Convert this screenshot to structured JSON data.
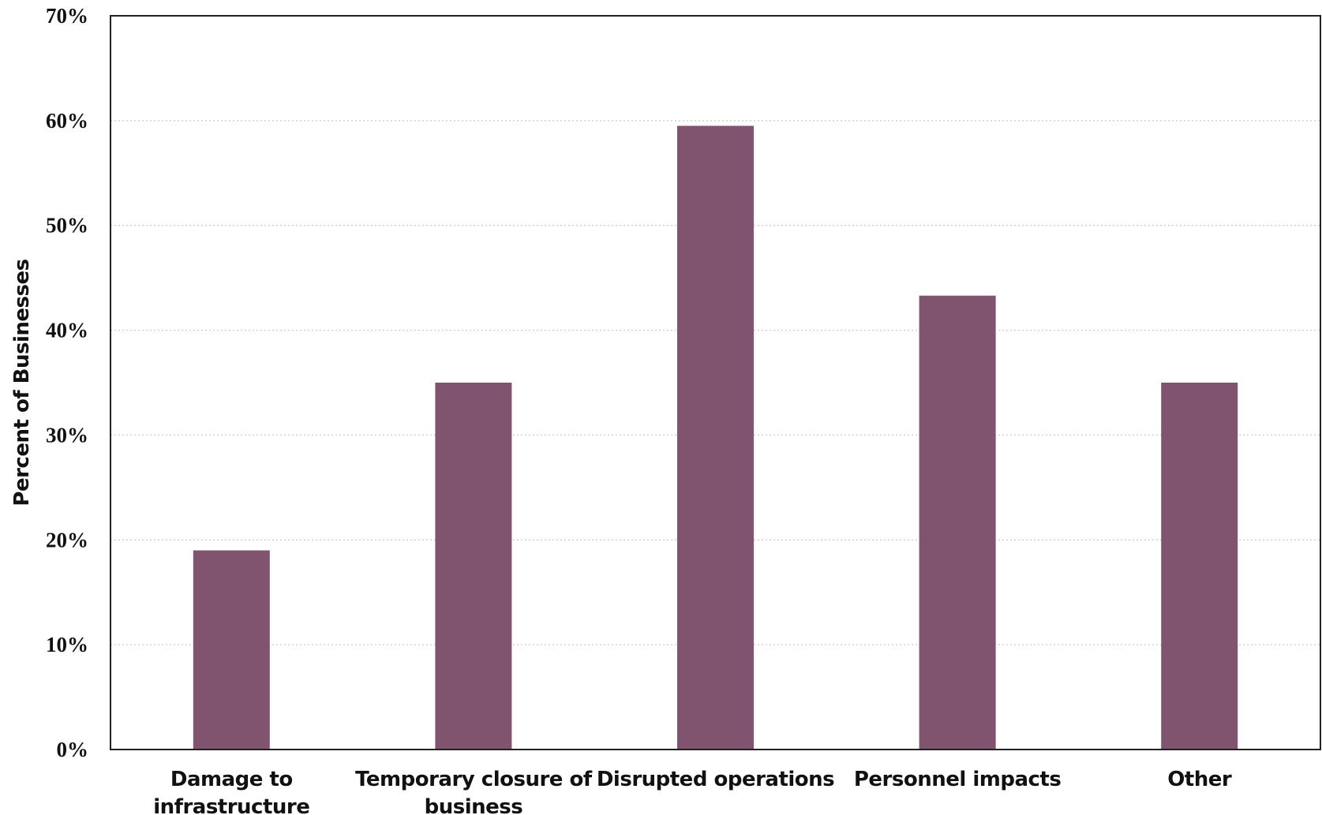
{
  "chart_data": {
    "type": "bar",
    "title": "",
    "xlabel": "",
    "ylabel": "Percent of Businesses",
    "categories": [
      [
        "Damage to",
        "infrastructure"
      ],
      [
        "Temporary closure of",
        "business"
      ],
      [
        "Disrupted operations"
      ],
      [
        "Personnel impacts"
      ],
      [
        "Other"
      ]
    ],
    "values": [
      0.19,
      0.35,
      0.595,
      0.433,
      0.35
    ],
    "ylim": [
      0,
      0.7
    ],
    "yticks": [
      0,
      0.1,
      0.2,
      0.3,
      0.4,
      0.5,
      0.6,
      0.7
    ],
    "ytick_labels": [
      "0%",
      "10%",
      "20%",
      "30%",
      "40%",
      "50%",
      "60%",
      "70%"
    ],
    "bar_color": "#80546F",
    "grid": "horizontal dotted",
    "legend": "none"
  }
}
